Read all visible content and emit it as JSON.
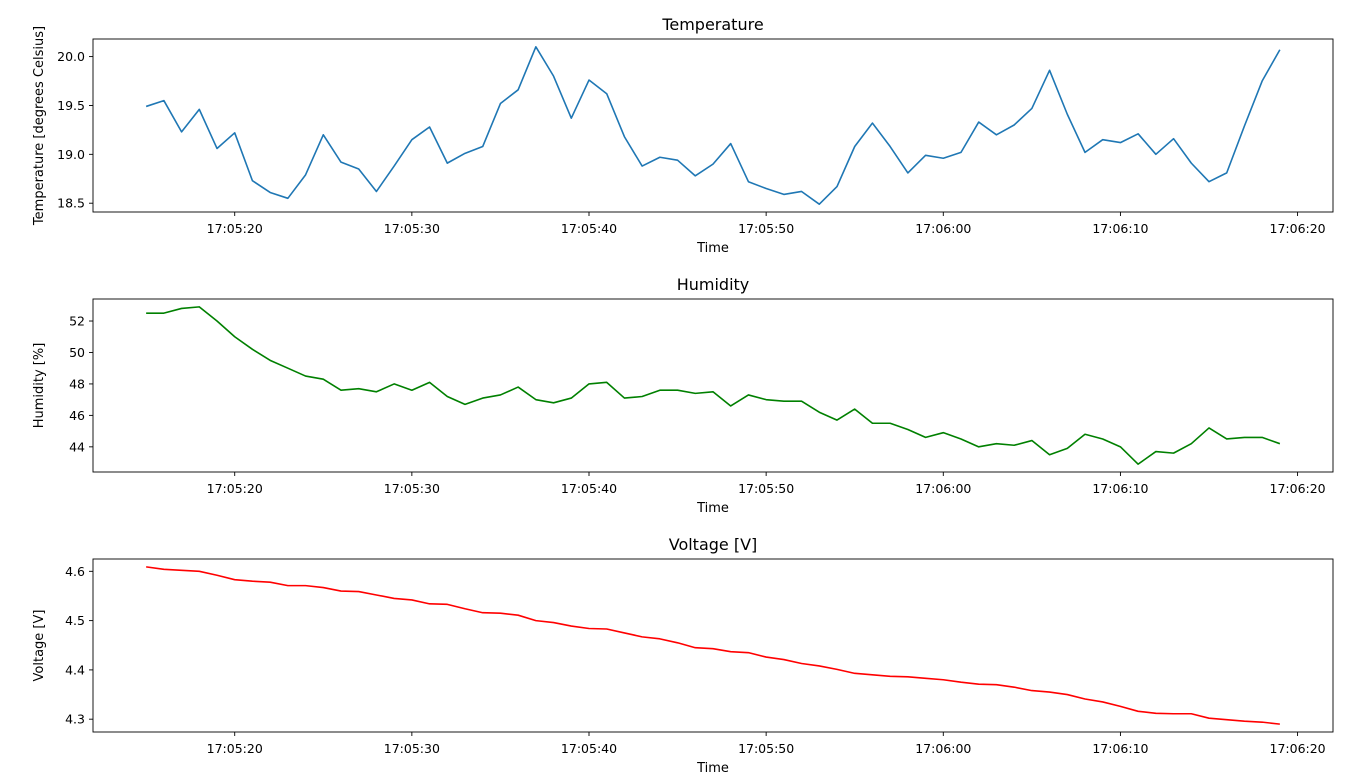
{
  "chart_data": [
    {
      "type": "line",
      "title": "Temperature",
      "xlabel": "Time",
      "ylabel": "Temperature [degrees Celsius]",
      "color": "#1f77b4",
      "xlim": [
        "17:05:12",
        "17:06:22"
      ],
      "ylim": [
        18.41,
        20.18
      ],
      "x_ticks": [
        "17:05:20",
        "17:05:30",
        "17:05:40",
        "17:05:50",
        "17:06:00",
        "17:06:10",
        "17:06:20"
      ],
      "y_ticks": [
        18.5,
        19.0,
        19.5,
        20.0
      ],
      "y_tick_labels": [
        "18.5",
        "19.0",
        "19.5",
        "20.0"
      ],
      "x_start": "17:05:15",
      "x_step_seconds": 1,
      "values": [
        19.49,
        19.55,
        19.23,
        19.46,
        19.06,
        19.22,
        18.73,
        18.61,
        18.55,
        18.79,
        19.2,
        18.92,
        18.85,
        18.62,
        18.88,
        19.15,
        19.28,
        18.91,
        19.01,
        19.08,
        19.52,
        19.66,
        20.1,
        19.8,
        19.37,
        19.76,
        19.62,
        19.18,
        18.88,
        18.97,
        18.94,
        18.78,
        18.9,
        19.11,
        18.72,
        18.65,
        18.59,
        18.62,
        18.49,
        18.67,
        19.08,
        19.32,
        19.08,
        18.81,
        18.99,
        18.96,
        19.02,
        19.33,
        19.2,
        19.3,
        19.47,
        19.86,
        19.41,
        19.02,
        19.15,
        19.12,
        19.21,
        19.0,
        19.16,
        18.91,
        18.72,
        18.81,
        19.29,
        19.75,
        20.07
      ]
    },
    {
      "type": "line",
      "title": "Humidity",
      "xlabel": "Time",
      "ylabel": "Humidity [%]",
      "color": "#008000",
      "xlim": [
        "17:05:12",
        "17:06:22"
      ],
      "ylim": [
        42.4,
        53.4
      ],
      "x_ticks": [
        "17:05:20",
        "17:05:30",
        "17:05:40",
        "17:05:50",
        "17:06:00",
        "17:06:10",
        "17:06:20"
      ],
      "y_ticks": [
        44,
        46,
        48,
        50,
        52
      ],
      "y_tick_labels": [
        "44",
        "46",
        "48",
        "50",
        "52"
      ],
      "x_start": "17:05:15",
      "x_step_seconds": 1,
      "values": [
        52.5,
        52.5,
        52.8,
        52.9,
        52.0,
        51.0,
        50.2,
        49.5,
        49.0,
        48.5,
        48.3,
        47.6,
        47.7,
        47.5,
        48.0,
        47.6,
        48.1,
        47.2,
        46.7,
        47.1,
        47.3,
        47.8,
        47.0,
        46.8,
        47.1,
        48.0,
        48.1,
        47.1,
        47.2,
        47.6,
        47.6,
        47.4,
        47.5,
        46.6,
        47.3,
        47.0,
        46.9,
        46.9,
        46.2,
        45.7,
        46.4,
        45.5,
        45.5,
        45.1,
        44.6,
        44.9,
        44.5,
        44.0,
        44.2,
        44.1,
        44.4,
        43.5,
        43.9,
        44.8,
        44.5,
        44.0,
        42.9,
        43.7,
        43.6,
        44.2,
        45.2,
        44.5,
        44.6,
        44.6,
        44.2
      ]
    },
    {
      "type": "line",
      "title": "Voltage [V]",
      "xlabel": "Time",
      "ylabel": "Voltage [V]",
      "color": "#ff0000",
      "xlim": [
        "17:05:12",
        "17:06:22"
      ],
      "ylim": [
        4.274,
        4.625
      ],
      "x_ticks": [
        "17:05:20",
        "17:05:30",
        "17:05:40",
        "17:05:50",
        "17:06:00",
        "17:06:10",
        "17:06:20"
      ],
      "y_ticks": [
        4.3,
        4.4,
        4.5,
        4.6
      ],
      "y_tick_labels": [
        "4.3",
        "4.4",
        "4.5",
        "4.6"
      ],
      "x_start": "17:05:15",
      "x_step_seconds": 1,
      "values": [
        4.609,
        4.604,
        4.602,
        4.6,
        4.592,
        4.583,
        4.58,
        4.578,
        4.571,
        4.571,
        4.567,
        4.56,
        4.559,
        4.552,
        4.545,
        4.542,
        4.534,
        4.533,
        4.524,
        4.516,
        4.515,
        4.511,
        4.5,
        4.496,
        4.489,
        4.484,
        4.483,
        4.475,
        4.467,
        4.463,
        4.455,
        4.445,
        4.443,
        4.437,
        4.435,
        4.426,
        4.421,
        4.413,
        4.408,
        4.401,
        4.393,
        4.39,
        4.387,
        4.386,
        4.383,
        4.38,
        4.375,
        4.371,
        4.37,
        4.365,
        4.358,
        4.355,
        4.35,
        4.341,
        4.335,
        4.326,
        4.316,
        4.312,
        4.311,
        4.311,
        4.302,
        4.299,
        4.296,
        4.294,
        4.29
      ]
    }
  ]
}
